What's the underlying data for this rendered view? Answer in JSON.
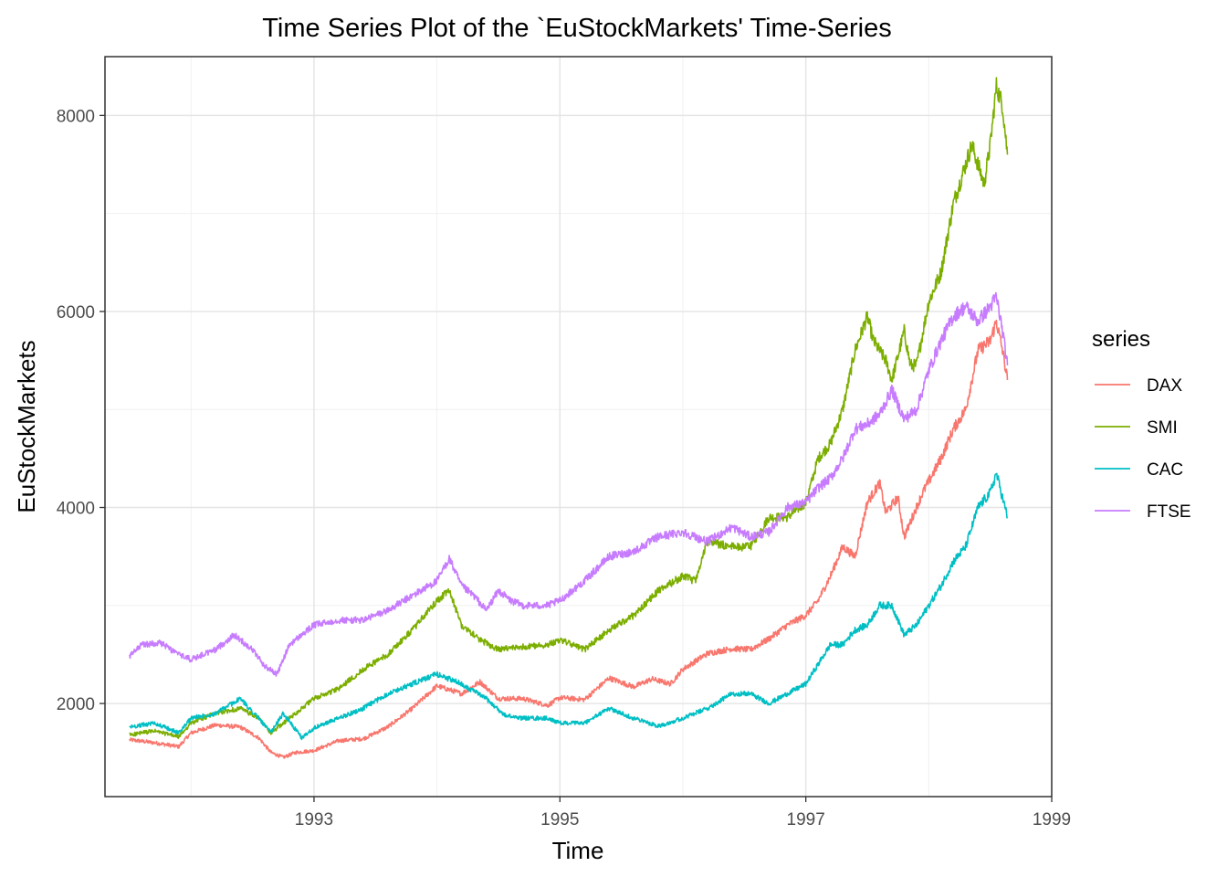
{
  "chart_data": {
    "type": "line",
    "title": "Time Series Plot of the `EuStockMarkets' Time-Series",
    "xlabel": "Time",
    "ylabel": "EuStockMarkets",
    "xlim": [
      1991.3,
      1999.0
    ],
    "ylim": [
      1050,
      8600
    ],
    "x_ticks": [
      1993,
      1995,
      1997,
      1999
    ],
    "x_tick_labels": [
      "1993",
      "1995",
      "1997",
      "1999"
    ],
    "y_ticks": [
      2000,
      4000,
      6000,
      8000
    ],
    "y_tick_labels": [
      "2000",
      "4000",
      "6000",
      "8000"
    ],
    "grid": true,
    "legend": {
      "title": "series",
      "position": "right"
    },
    "series": [
      {
        "name": "DAX",
        "color": "#F8766D",
        "x": [
          1991.5,
          1991.7,
          1991.9,
          1992.0,
          1992.2,
          1992.4,
          1992.55,
          1992.65,
          1992.75,
          1992.85,
          1993.0,
          1993.2,
          1993.4,
          1993.6,
          1993.8,
          1994.0,
          1994.2,
          1994.35,
          1994.5,
          1994.7,
          1994.9,
          1995.0,
          1995.2,
          1995.4,
          1995.6,
          1995.75,
          1995.9,
          1996.0,
          1996.2,
          1996.4,
          1996.55,
          1996.7,
          1996.85,
          1997.0,
          1997.1,
          1997.2,
          1997.3,
          1997.4,
          1997.5,
          1997.6,
          1997.65,
          1997.75,
          1997.8,
          1997.9,
          1997.95,
          1998.1,
          1998.2,
          1998.3,
          1998.4,
          1998.5,
          1998.55,
          1998.6,
          1998.64
        ],
        "values": [
          1630,
          1600,
          1560,
          1700,
          1780,
          1760,
          1650,
          1500,
          1450,
          1500,
          1520,
          1620,
          1640,
          1760,
          1950,
          2180,
          2100,
          2220,
          2050,
          2050,
          1980,
          2060,
          2040,
          2260,
          2170,
          2250,
          2200,
          2350,
          2510,
          2560,
          2550,
          2660,
          2800,
          2900,
          3050,
          3300,
          3600,
          3500,
          4050,
          4250,
          3950,
          4100,
          3700,
          4000,
          4150,
          4500,
          4800,
          5000,
          5600,
          5700,
          5900,
          5600,
          5300
        ]
      },
      {
        "name": "SMI",
        "color": "#7CAE00",
        "x": [
          1991.5,
          1991.7,
          1991.9,
          1992.0,
          1992.2,
          1992.4,
          1992.55,
          1992.65,
          1992.8,
          1993.0,
          1993.2,
          1993.4,
          1993.6,
          1993.8,
          1994.0,
          1994.1,
          1994.2,
          1994.35,
          1994.5,
          1994.7,
          1994.9,
          1995.0,
          1995.2,
          1995.4,
          1995.6,
          1995.8,
          1996.0,
          1996.1,
          1996.2,
          1996.4,
          1996.55,
          1996.7,
          1996.85,
          1997.0,
          1997.1,
          1997.2,
          1997.3,
          1997.4,
          1997.5,
          1997.55,
          1997.65,
          1997.7,
          1997.8,
          1997.85,
          1997.9,
          1998.0,
          1998.1,
          1998.2,
          1998.3,
          1998.35,
          1998.45,
          1998.5,
          1998.55,
          1998.6,
          1998.64
        ],
        "values": [
          1680,
          1720,
          1660,
          1800,
          1900,
          1950,
          1850,
          1700,
          1850,
          2050,
          2150,
          2350,
          2500,
          2750,
          3050,
          3150,
          2800,
          2650,
          2550,
          2580,
          2600,
          2650,
          2550,
          2750,
          2900,
          3150,
          3300,
          3250,
          3650,
          3600,
          3600,
          3900,
          3900,
          4050,
          4500,
          4650,
          5000,
          5600,
          5950,
          5700,
          5500,
          5300,
          5800,
          5450,
          5450,
          6100,
          6400,
          7100,
          7500,
          7700,
          7300,
          7700,
          8300,
          8100,
          7600
        ]
      },
      {
        "name": "CAC",
        "color": "#00BFC4",
        "x": [
          1991.5,
          1991.7,
          1991.9,
          1992.0,
          1992.2,
          1992.4,
          1992.55,
          1992.65,
          1992.75,
          1992.9,
          1993.0,
          1993.2,
          1993.4,
          1993.6,
          1993.8,
          1994.0,
          1994.2,
          1994.4,
          1994.55,
          1994.7,
          1994.9,
          1995.0,
          1995.2,
          1995.4,
          1995.6,
          1995.8,
          1996.0,
          1996.2,
          1996.4,
          1996.55,
          1996.7,
          1996.85,
          1997.0,
          1997.1,
          1997.2,
          1997.3,
          1997.4,
          1997.5,
          1997.6,
          1997.7,
          1997.8,
          1997.9,
          1998.0,
          1998.1,
          1998.2,
          1998.3,
          1998.4,
          1998.5,
          1998.55,
          1998.6,
          1998.64
        ],
        "values": [
          1760,
          1800,
          1700,
          1850,
          1900,
          2050,
          1850,
          1700,
          1900,
          1650,
          1750,
          1850,
          1950,
          2100,
          2200,
          2300,
          2200,
          2050,
          1880,
          1850,
          1850,
          1800,
          1800,
          1950,
          1850,
          1770,
          1850,
          1950,
          2100,
          2100,
          2000,
          2100,
          2200,
          2400,
          2600,
          2600,
          2750,
          2800,
          3000,
          3000,
          2700,
          2800,
          3000,
          3200,
          3450,
          3600,
          4000,
          4150,
          4350,
          4100,
          3900
        ]
      },
      {
        "name": "FTSE",
        "color": "#C77CFF",
        "x": [
          1991.5,
          1991.6,
          1991.75,
          1991.9,
          1992.0,
          1992.2,
          1992.35,
          1992.5,
          1992.6,
          1992.7,
          1992.8,
          1993.0,
          1993.2,
          1993.4,
          1993.6,
          1993.8,
          1994.0,
          1994.1,
          1994.2,
          1994.3,
          1994.4,
          1994.5,
          1994.6,
          1994.7,
          1994.9,
          1995.0,
          1995.2,
          1995.4,
          1995.6,
          1995.8,
          1996.0,
          1996.2,
          1996.4,
          1996.55,
          1996.7,
          1996.85,
          1997.0,
          1997.1,
          1997.2,
          1997.3,
          1997.4,
          1997.5,
          1997.6,
          1997.7,
          1997.8,
          1997.9,
          1998.0,
          1998.1,
          1998.2,
          1998.3,
          1998.4,
          1998.5,
          1998.55,
          1998.6,
          1998.64
        ],
        "values": [
          2480,
          2600,
          2620,
          2500,
          2450,
          2550,
          2700,
          2550,
          2380,
          2300,
          2600,
          2800,
          2850,
          2850,
          2950,
          3100,
          3250,
          3480,
          3200,
          3100,
          2950,
          3150,
          3050,
          3000,
          3000,
          3050,
          3250,
          3500,
          3550,
          3700,
          3750,
          3650,
          3800,
          3700,
          3750,
          4000,
          4050,
          4200,
          4300,
          4500,
          4800,
          4850,
          4950,
          5200,
          4900,
          5000,
          5400,
          5700,
          5950,
          6050,
          5900,
          6050,
          6150,
          5800,
          5450
        ]
      }
    ]
  }
}
